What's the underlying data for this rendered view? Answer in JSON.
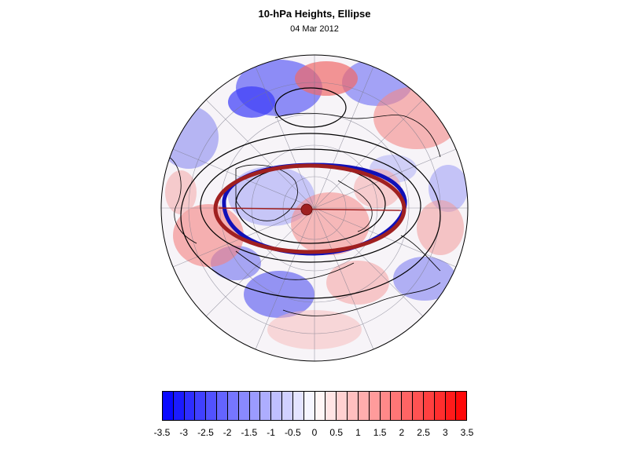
{
  "header": {
    "title": "10-hPa Heights, Ellipse",
    "subtitle": "04 Mar 2012"
  },
  "colors": {
    "negative": "#0000ff",
    "positive": "#ff0000",
    "ellipse_fit": "#a02020",
    "vortex_edge": "#1010b8",
    "contour": "#000000"
  },
  "map": {
    "projection": "orthographic-polar-north",
    "content": "geopotential height anomaly shading with contours, fitted ellipse, vortex edge and centroid marker"
  },
  "colorbar": {
    "levels": [
      -3.5,
      -3.25,
      -3,
      -2.75,
      -2.5,
      -2.25,
      -2,
      -1.75,
      -1.5,
      -1.25,
      -1,
      -0.75,
      -0.5,
      -0.25,
      0,
      0.25,
      0.5,
      0.75,
      1,
      1.25,
      1.5,
      1.75,
      2,
      2.25,
      2.5,
      2.75,
      3,
      3.25,
      3.5
    ],
    "tick_labels": [
      "-3.5",
      "-3",
      "-2.5",
      "-2",
      "-1.5",
      "-1",
      "-0.5",
      "0",
      "0.5",
      "1",
      "1.5",
      "2",
      "2.5",
      "3",
      "3.5"
    ]
  }
}
